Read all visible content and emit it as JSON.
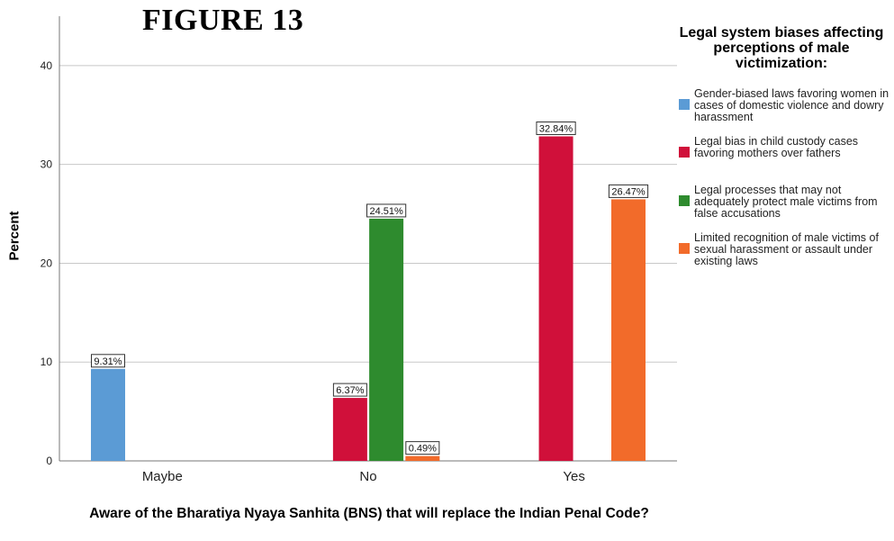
{
  "figure_title": "FIGURE 13",
  "chart_data": {
    "type": "bar",
    "categories": [
      "Maybe",
      "No",
      "Yes"
    ],
    "xlabel": "Aware of the Bharatiya Nyaya Sanhita (BNS) that will replace the Indian Penal Code?",
    "ylabel": "Percent",
    "ylim": [
      0,
      45
    ],
    "yticks": [
      0,
      10,
      20,
      30,
      40
    ],
    "grid": true,
    "legend_position": "right",
    "legend_title": "Legal system biases affecting perceptions of male victimization:",
    "series": [
      {
        "name": "Gender-biased laws favoring women in cases of domestic violence and dowry harassment",
        "color": "#5b9bd5",
        "values": [
          9.31,
          null,
          null
        ],
        "labels": [
          "9.31%",
          null,
          null
        ]
      },
      {
        "name": "Legal bias in child custody cases favoring mothers over fathers",
        "color": "#d0103a",
        "values": [
          null,
          6.37,
          32.84
        ],
        "labels": [
          null,
          "6.37%",
          "32.84%"
        ]
      },
      {
        "name": "Legal processes that may not adequately protect male victims from false accusations",
        "color": "#2e8b2e",
        "values": [
          null,
          24.51,
          null
        ],
        "labels": [
          null,
          "24.51%",
          null
        ]
      },
      {
        "name": "Limited recognition of male victims of sexual harassment or assault under existing laws",
        "color": "#f26b2a",
        "values": [
          null,
          0.49,
          26.47
        ],
        "labels": [
          null,
          "0.49%",
          "26.47%"
        ]
      }
    ]
  }
}
